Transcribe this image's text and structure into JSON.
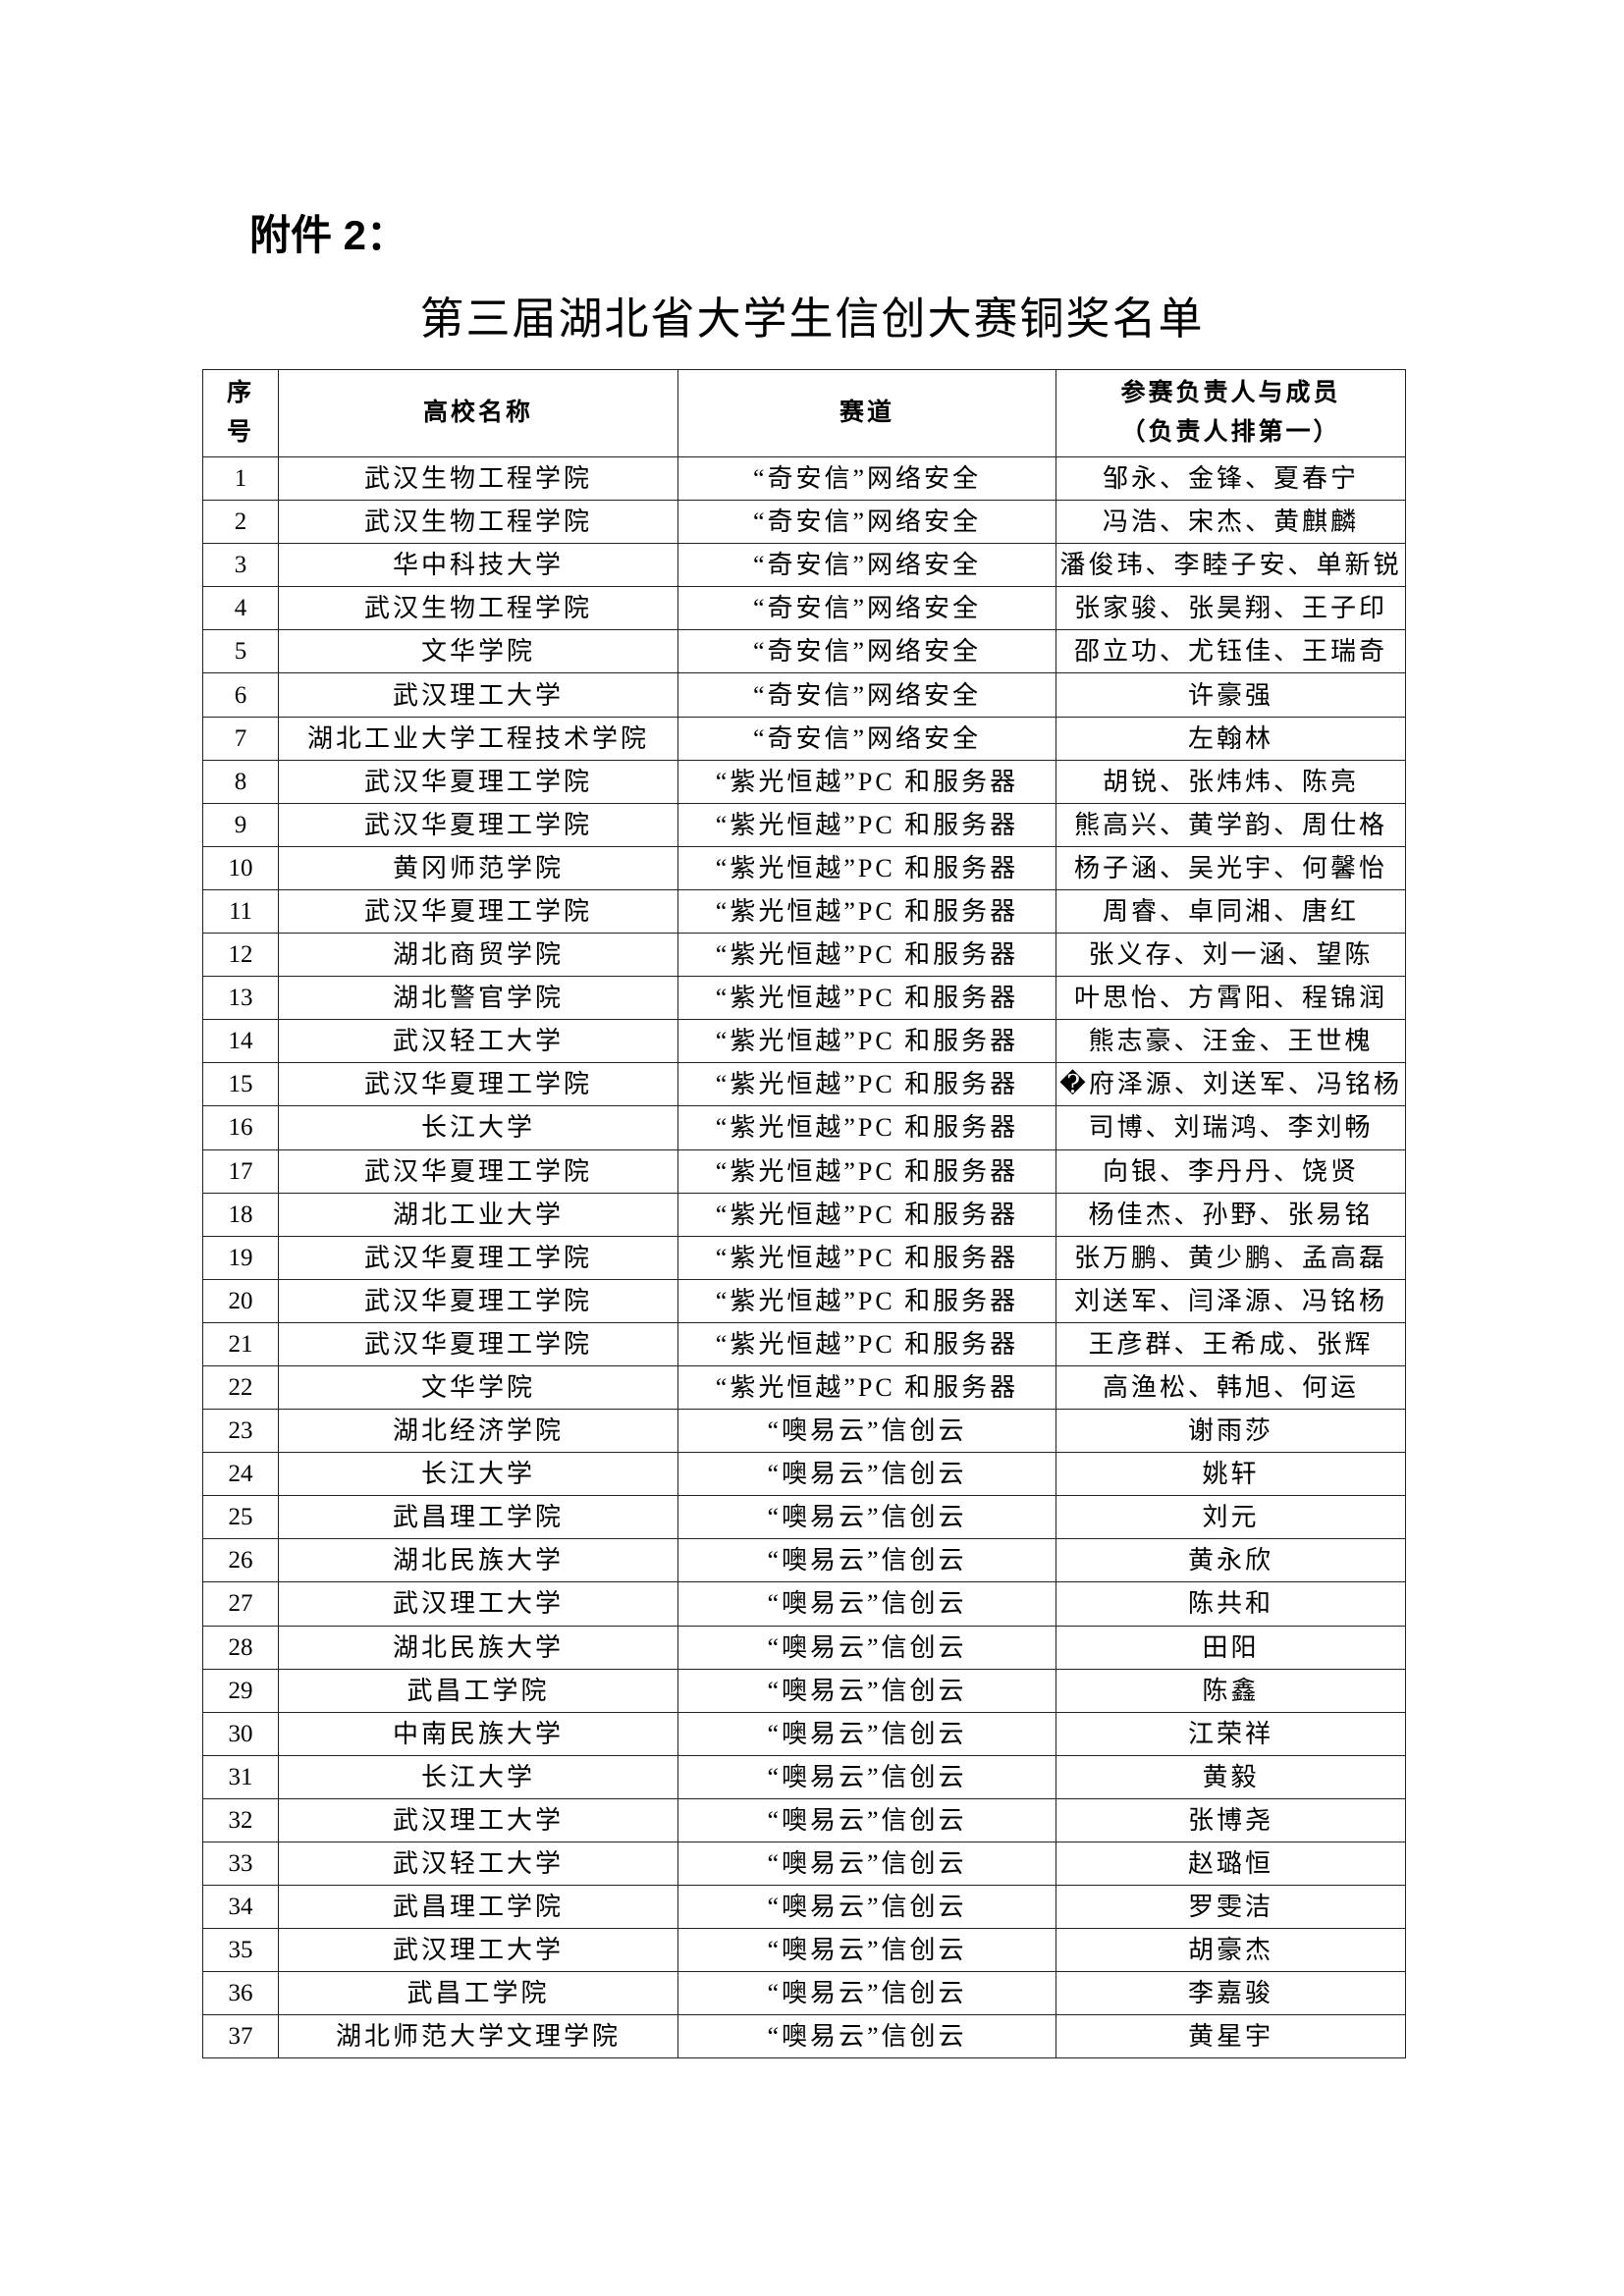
{
  "attachment_label": "附件 2：",
  "title": "第三届湖北省大学生信创大赛铜奖名单",
  "table": {
    "headers": {
      "no_line1": "序",
      "no_line2": "号",
      "school": "高校名称",
      "track": "赛道",
      "members_line1": "参赛负责人与成员",
      "members_line2": "（负责人排第一）"
    },
    "rows": [
      [
        "1",
        "武汉生物工程学院",
        "“奇安信”网络安全",
        "邹永、金锋、夏春宁"
      ],
      [
        "2",
        "武汉生物工程学院",
        "“奇安信”网络安全",
        "冯浩、宋杰、黄麒麟"
      ],
      [
        "3",
        "华中科技大学",
        "“奇安信”网络安全",
        "潘俊玮、李睦子安、单新锐"
      ],
      [
        "4",
        "武汉生物工程学院",
        "“奇安信”网络安全",
        "张家骏、张昊翔、王子印"
      ],
      [
        "5",
        "文华学院",
        "“奇安信”网络安全",
        "邵立功、尤钰佳、王瑞奇"
      ],
      [
        "6",
        "武汉理工大学",
        "“奇安信”网络安全",
        "许豪强"
      ],
      [
        "7",
        "湖北工业大学工程技术学院",
        "“奇安信”网络安全",
        "左翰林"
      ],
      [
        "8",
        "武汉华夏理工学院",
        "“紫光恒越”PC 和服务器",
        "胡锐、张炜炜、陈亮"
      ],
      [
        "9",
        "武汉华夏理工学院",
        "“紫光恒越”PC 和服务器",
        "熊高兴、黄学韵、周仕格"
      ],
      [
        "10",
        "黄冈师范学院",
        "“紫光恒越”PC 和服务器",
        "杨子涵、吴光宇、何馨怡"
      ],
      [
        "11",
        "武汉华夏理工学院",
        "“紫光恒越”PC 和服务器",
        "周睿、卓同湘、唐红"
      ],
      [
        "12",
        "湖北商贸学院",
        "“紫光恒越”PC 和服务器",
        "张义存、刘一涵、望陈"
      ],
      [
        "13",
        "湖北警官学院",
        "“紫光恒越”PC 和服务器",
        "叶思怡、方霄阳、程锦润"
      ],
      [
        "14",
        "武汉轻工大学",
        "“紫光恒越”PC 和服务器",
        "熊志豪、汪金、王世槐"
      ],
      [
        "15",
        "武汉华夏理工学院",
        "“紫光恒越”PC 和服务器",
        "�府泽源、刘送军、冯铭杨"
      ],
      [
        "16",
        "长江大学",
        "“紫光恒越”PC 和服务器",
        "司博、刘瑞鸿、李刘畅"
      ],
      [
        "17",
        "武汉华夏理工学院",
        "“紫光恒越”PC 和服务器",
        "向银、李丹丹、饶贤"
      ],
      [
        "18",
        "湖北工业大学",
        "“紫光恒越”PC 和服务器",
        "杨佳杰、孙野、张易铭"
      ],
      [
        "19",
        "武汉华夏理工学院",
        "“紫光恒越”PC 和服务器",
        "张万鹏、黄少鹏、孟高磊"
      ],
      [
        "20",
        "武汉华夏理工学院",
        "“紫光恒越”PC 和服务器",
        "刘送军、闫泽源、冯铭杨"
      ],
      [
        "21",
        "武汉华夏理工学院",
        "“紫光恒越”PC 和服务器",
        "王彦群、王希成、张辉"
      ],
      [
        "22",
        "文华学院",
        "“紫光恒越”PC 和服务器",
        "高渔松、韩旭、何运"
      ],
      [
        "23",
        "湖北经济学院",
        "“噢易云”信创云",
        "谢雨莎"
      ],
      [
        "24",
        "长江大学",
        "“噢易云”信创云",
        "姚轩"
      ],
      [
        "25",
        "武昌理工学院",
        "“噢易云”信创云",
        "刘元"
      ],
      [
        "26",
        "湖北民族大学",
        "“噢易云”信创云",
        "黄永欣"
      ],
      [
        "27",
        "武汉理工大学",
        "“噢易云”信创云",
        "陈共和"
      ],
      [
        "28",
        "湖北民族大学",
        "“噢易云”信创云",
        "田阳"
      ],
      [
        "29",
        "武昌工学院",
        "“噢易云”信创云",
        "陈鑫"
      ],
      [
        "30",
        "中南民族大学",
        "“噢易云”信创云",
        "江荣祥"
      ],
      [
        "31",
        "长江大学",
        "“噢易云”信创云",
        "黄毅"
      ],
      [
        "32",
        "武汉理工大学",
        "“噢易云”信创云",
        "张博尧"
      ],
      [
        "33",
        "武汉轻工大学",
        "“噢易云”信创云",
        "赵璐恒"
      ],
      [
        "34",
        "武昌理工学院",
        "“噢易云”信创云",
        "罗雯洁"
      ],
      [
        "35",
        "武汉理工大学",
        "“噢易云”信创云",
        "胡豪杰"
      ],
      [
        "36",
        "武昌工学院",
        "“噢易云”信创云",
        "李嘉骏"
      ],
      [
        "37",
        "湖北师范大学文理学院",
        "“噢易云”信创云",
        "黄星宇"
      ]
    ]
  }
}
